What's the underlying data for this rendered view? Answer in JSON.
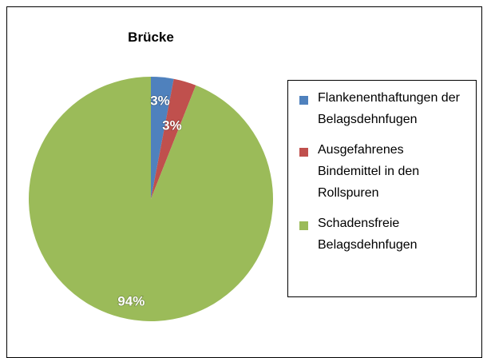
{
  "chart_data": {
    "type": "pie",
    "title": "Brücke",
    "categories": [
      "Flankenenthaftungen der Belagsdehnfugen",
      "Ausgefahrenes Bindemittel in den Rollspuren",
      "Schadensfreie Belagsdehnfugen"
    ],
    "values": [
      3,
      3,
      94
    ],
    "value_labels": [
      "3%",
      "3%",
      "94%"
    ],
    "colors": [
      "#4f81bd",
      "#c0504d",
      "#9bbb59"
    ],
    "legend": "right"
  }
}
